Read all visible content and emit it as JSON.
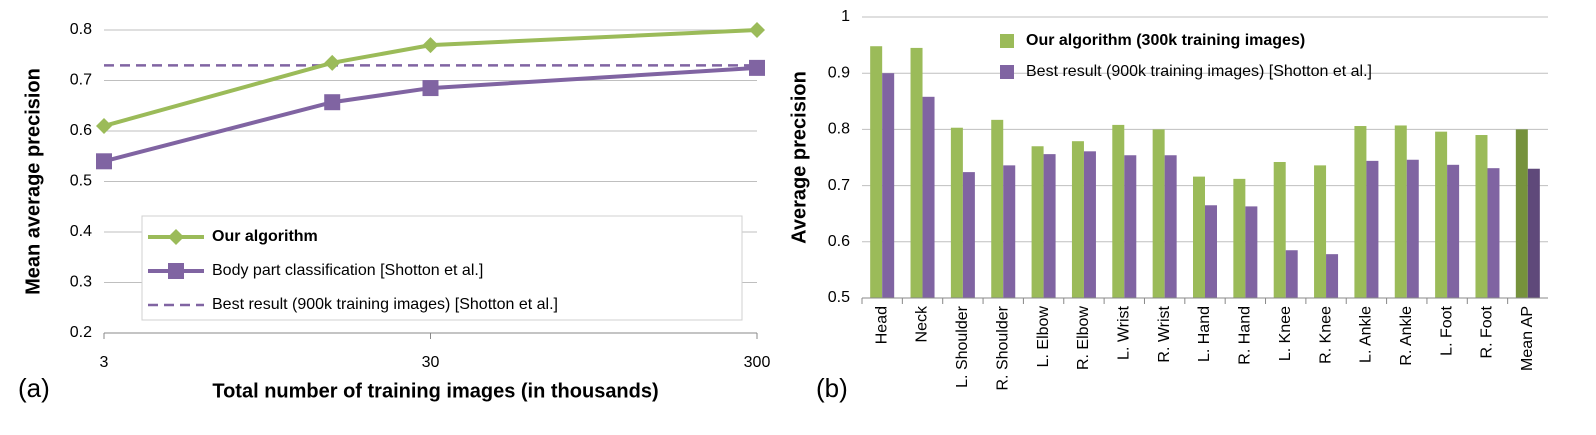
{
  "chart_data": [
    {
      "type": "line",
      "panel_label": "(a)",
      "x_label": "Total number of training images (in thousands)",
      "y_label": "Mean average precision",
      "x": [
        3,
        15,
        30,
        300
      ],
      "xlim": [
        3,
        300
      ],
      "xticks": [
        3,
        30,
        300
      ],
      "xscale": "log",
      "ylim": [
        0.2,
        0.8
      ],
      "yticks": [
        0.2,
        0.3,
        0.4,
        0.5,
        0.6,
        0.7,
        0.8
      ],
      "grid": true,
      "series": [
        {
          "name": "Our algorithm",
          "color": "#9bbb59",
          "marker": "diamond",
          "values": [
            0.61,
            0.735,
            0.77,
            0.8
          ]
        },
        {
          "name": "Body part classification [Shotton et al.]",
          "color": "#8064a2",
          "marker": "square",
          "values": [
            0.54,
            0.657,
            0.685,
            0.725
          ]
        }
      ],
      "reference_lines": [
        {
          "name": "Best result (900k training images) [Shotton et al.]",
          "color": "#8064a2",
          "value": 0.73,
          "dashed": true
        }
      ],
      "legend": "lower center"
    },
    {
      "type": "bar",
      "panel_label": "(b)",
      "y_label": "Average precision",
      "categories": [
        "Head",
        "Neck",
        "L. Shoulder",
        "R. Shoulder",
        "L. Elbow",
        "R. Elbow",
        "L. Wrist",
        "R. Wrist",
        "L. Hand",
        "R. Hand",
        "L. Knee",
        "R. Knee",
        "L. Ankle",
        "R. Ankle",
        "L. Foot",
        "R. Foot",
        "Mean AP"
      ],
      "ylim": [
        0.5,
        1
      ],
      "yticks": [
        0.5,
        0.6,
        0.7,
        0.8,
        0.9,
        1
      ],
      "grid": true,
      "series": [
        {
          "name": "Our algorithm (300k training images)",
          "color": "#9bbb59",
          "highlight_color": "#76923c",
          "values": [
            0.948,
            0.945,
            0.803,
            0.817,
            0.77,
            0.779,
            0.808,
            0.8,
            0.716,
            0.712,
            0.742,
            0.736,
            0.806,
            0.807,
            0.796,
            0.79,
            0.8
          ]
        },
        {
          "name": "Best result (900k training images) [Shotton et al.]",
          "color": "#8064a2",
          "highlight_color": "#5f497a",
          "values": [
            0.9,
            0.858,
            0.724,
            0.736,
            0.756,
            0.761,
            0.754,
            0.754,
            0.665,
            0.663,
            0.585,
            0.578,
            0.744,
            0.746,
            0.737,
            0.731,
            0.73
          ]
        }
      ],
      "legend": "upper right"
    }
  ]
}
